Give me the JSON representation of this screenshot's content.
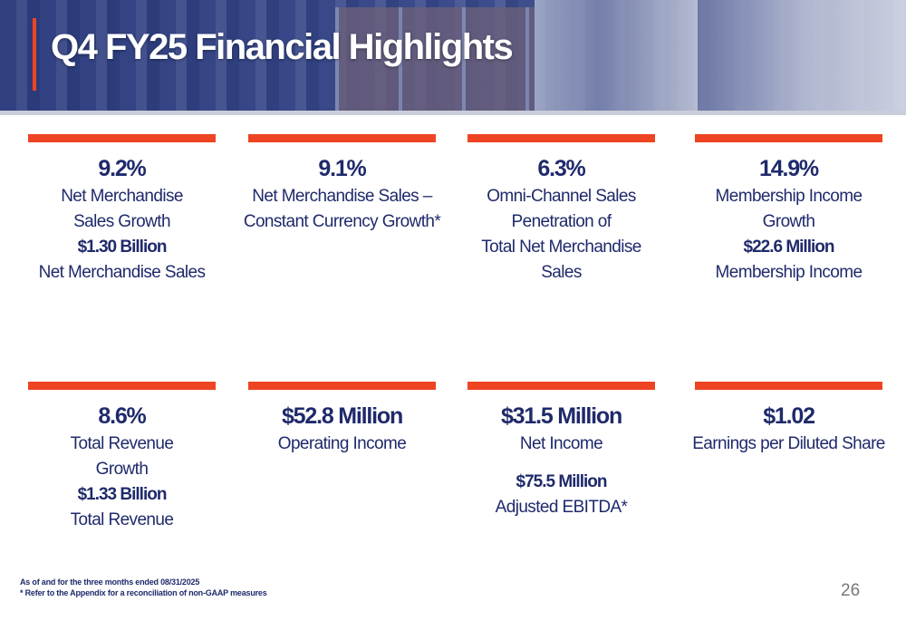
{
  "title": "Q4 FY25 Financial Highlights",
  "colors": {
    "navy": "#1f2a6b",
    "accent": "#ee4423"
  },
  "cards": [
    {
      "lines": [
        {
          "t": "9.2%",
          "s": "big"
        },
        {
          "t": "Net Merchandise",
          "s": "body"
        },
        {
          "t": "Sales Growth",
          "s": "body"
        },
        {
          "t": "$1.30 Billion",
          "s": "bold"
        },
        {
          "t": "Net Merchandise Sales",
          "s": "body"
        }
      ]
    },
    {
      "lines": [
        {
          "t": "9.1%",
          "s": "big"
        },
        {
          "t": "Net Merchandise Sales –",
          "s": "body"
        },
        {
          "t": "Constant Currency Growth*",
          "s": "body"
        }
      ]
    },
    {
      "lines": [
        {
          "t": "6.3%",
          "s": "big"
        },
        {
          "t": "Omni-Channel Sales",
          "s": "body"
        },
        {
          "t": "Penetration of",
          "s": "body"
        },
        {
          "t": "Total Net Merchandise",
          "s": "body"
        },
        {
          "t": "Sales",
          "s": "body"
        }
      ]
    },
    {
      "lines": [
        {
          "t": "14.9%",
          "s": "big"
        },
        {
          "t": "Membership Income",
          "s": "body"
        },
        {
          "t": "Growth",
          "s": "body"
        },
        {
          "t": "$22.6 Million",
          "s": "bold"
        },
        {
          "t": "Membership Income",
          "s": "body"
        }
      ]
    },
    {
      "lines": [
        {
          "t": "8.6%",
          "s": "big"
        },
        {
          "t": "Total Revenue",
          "s": "body"
        },
        {
          "t": "Growth",
          "s": "body"
        },
        {
          "t": "$1.33 Billion",
          "s": "bold"
        },
        {
          "t": "Total Revenue",
          "s": "body"
        }
      ]
    },
    {
      "lines": [
        {
          "t": "$52.8 Million",
          "s": "big"
        },
        {
          "t": "Operating Income",
          "s": "body"
        }
      ]
    },
    {
      "lines": [
        {
          "t": "$31.5 Million",
          "s": "big"
        },
        {
          "t": "Net Income",
          "s": "body"
        },
        {
          "t": "",
          "s": "gap"
        },
        {
          "t": "$75.5 Million",
          "s": "bold"
        },
        {
          "t": "Adjusted EBITDA*",
          "s": "body"
        }
      ]
    },
    {
      "lines": [
        {
          "t": "$1.02",
          "s": "big"
        },
        {
          "t": "Earnings per Diluted Share",
          "s": "body"
        }
      ]
    }
  ],
  "footnotes": [
    "As of and for the three months ended 08/31/2025",
    "* Refer to the Appendix for a reconciliation of non-GAAP measures"
  ],
  "page_number": "26"
}
